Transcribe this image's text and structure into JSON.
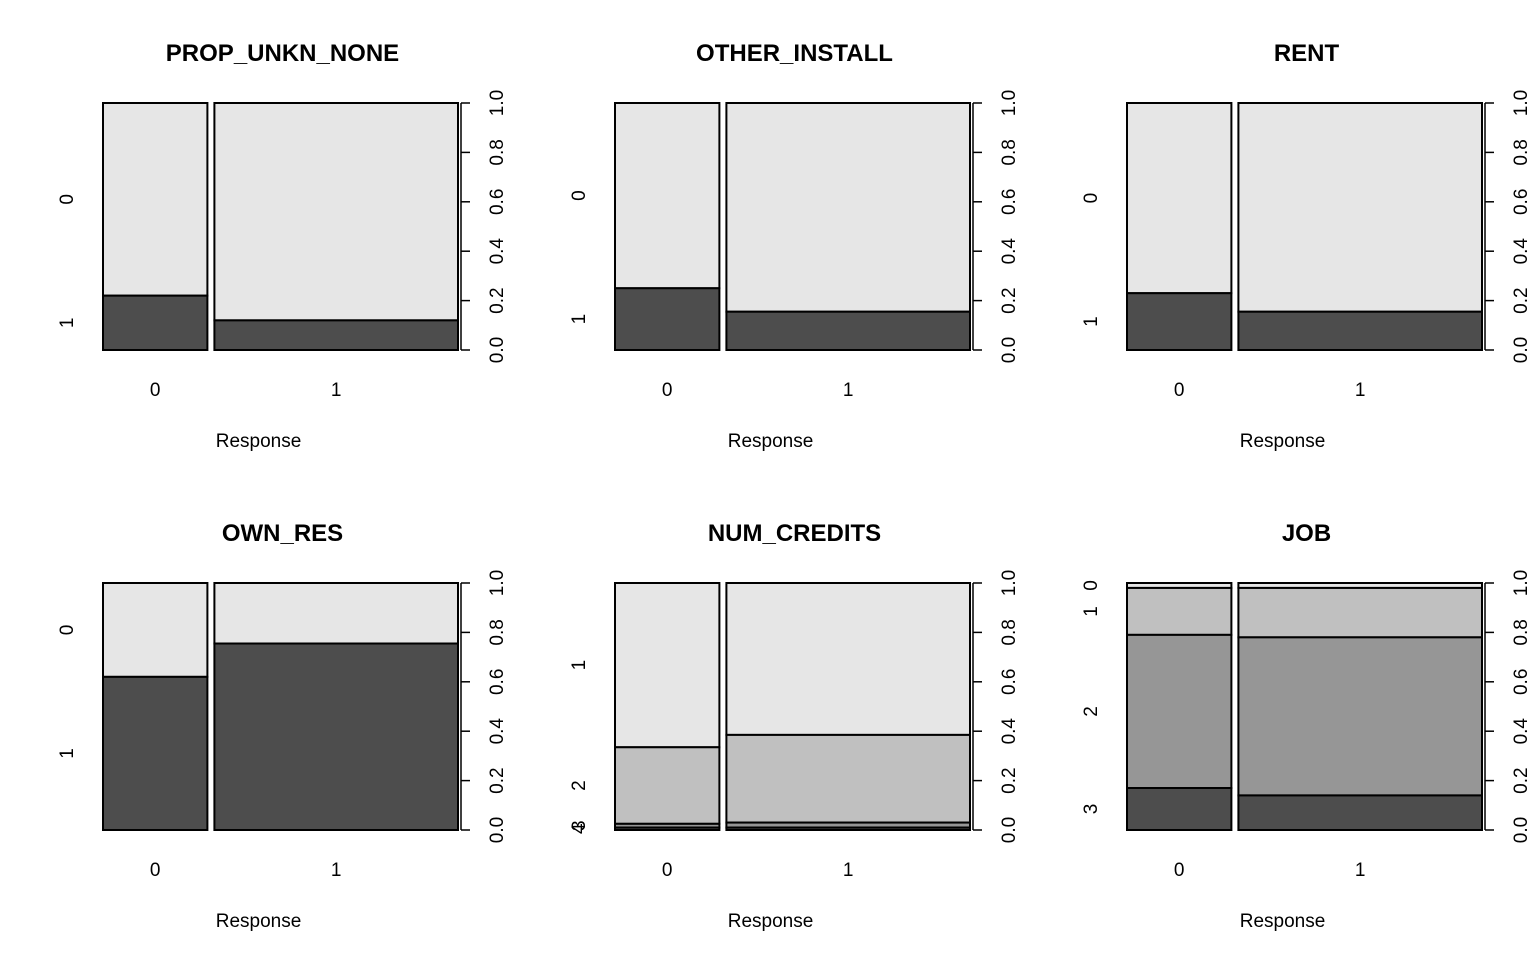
{
  "chart_data": [
    {
      "type": "spineplot",
      "title": "PROP_UNKN_NONE",
      "xlabel": "Response",
      "categories": [
        "0",
        "1"
      ],
      "x_widths": [
        0.3,
        0.7
      ],
      "levels": [
        "0",
        "1"
      ],
      "values": [
        [
          0.78,
          0.22
        ],
        [
          0.88,
          0.12
        ]
      ],
      "right_axis_ticks": [
        "0.0",
        "0.2",
        "0.4",
        "0.6",
        "0.8",
        "1.0"
      ]
    },
    {
      "type": "spineplot",
      "title": "OTHER_INSTALL",
      "xlabel": "Response",
      "categories": [
        "0",
        "1"
      ],
      "x_widths": [
        0.3,
        0.7
      ],
      "levels": [
        "0",
        "1"
      ],
      "values": [
        [
          0.75,
          0.25
        ],
        [
          0.845,
          0.155
        ]
      ],
      "right_axis_ticks": [
        "0.0",
        "0.2",
        "0.4",
        "0.6",
        "0.8",
        "1.0"
      ]
    },
    {
      "type": "spineplot",
      "title": "RENT",
      "xlabel": "Response",
      "categories": [
        "0",
        "1"
      ],
      "x_widths": [
        0.3,
        0.7
      ],
      "levels": [
        "0",
        "1"
      ],
      "values": [
        [
          0.77,
          0.23
        ],
        [
          0.845,
          0.155
        ]
      ],
      "right_axis_ticks": [
        "0.0",
        "0.2",
        "0.4",
        "0.6",
        "0.8",
        "1.0"
      ]
    },
    {
      "type": "spineplot",
      "title": "OWN_RES",
      "xlabel": "Response",
      "categories": [
        "0",
        "1"
      ],
      "x_widths": [
        0.3,
        0.7
      ],
      "levels": [
        "0",
        "1"
      ],
      "values": [
        [
          0.38,
          0.62
        ],
        [
          0.245,
          0.755
        ]
      ],
      "right_axis_ticks": [
        "0.0",
        "0.2",
        "0.4",
        "0.6",
        "0.8",
        "1.0"
      ]
    },
    {
      "type": "spineplot",
      "title": "NUM_CREDITS",
      "xlabel": "Response",
      "categories": [
        "0",
        "1"
      ],
      "x_widths": [
        0.3,
        0.7
      ],
      "levels": [
        "1",
        "2",
        "3",
        "4"
      ],
      "values": [
        [
          0.665,
          0.31,
          0.015,
          0.01
        ],
        [
          0.615,
          0.355,
          0.02,
          0.01
        ]
      ],
      "right_axis_ticks": [
        "0.0",
        "0.2",
        "0.4",
        "0.6",
        "0.8",
        "1.0"
      ]
    },
    {
      "type": "spineplot",
      "title": "JOB",
      "xlabel": "Response",
      "categories": [
        "0",
        "1"
      ],
      "x_widths": [
        0.3,
        0.7
      ],
      "levels": [
        "0",
        "1",
        "2",
        "3"
      ],
      "values": [
        [
          0.02,
          0.19,
          0.62,
          0.17
        ],
        [
          0.02,
          0.2,
          0.64,
          0.14
        ]
      ],
      "right_axis_ticks": [
        "0.0",
        "0.2",
        "0.4",
        "0.6",
        "0.8",
        "1.0"
      ]
    }
  ],
  "colors": {
    "greys_2": [
      "#e6e6e6",
      "#4d4d4d"
    ],
    "greys_4": [
      "#e6e6e6",
      "#c0c0c0",
      "#969696",
      "#4d4d4d"
    ],
    "stroke": "#000000"
  }
}
